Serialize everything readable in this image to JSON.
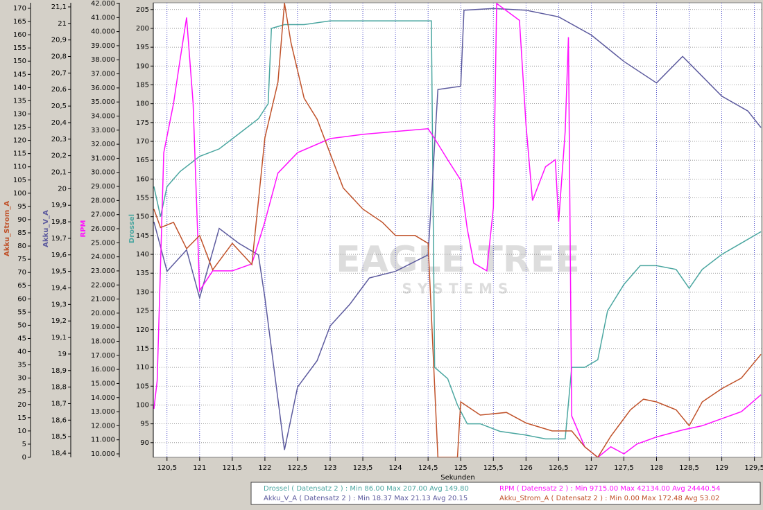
{
  "chart_data": {
    "type": "line",
    "grid": true,
    "x_label": "Sekunden",
    "watermark": [
      "EAGLE TREE",
      "SYSTEMS"
    ],
    "xlim": [
      120.29,
      129.61
    ],
    "xticks": [
      {
        "value": 120.5,
        "label": "120,5"
      },
      121,
      {
        "value": 121.5,
        "label": "121,5"
      },
      122,
      {
        "value": 122.5,
        "label": "122,5"
      },
      123,
      {
        "value": 123.5,
        "label": "123,5"
      },
      124,
      {
        "value": 124.5,
        "label": "124,5"
      },
      125,
      {
        "value": 125.5,
        "label": "125,5"
      },
      126,
      {
        "value": 126.5,
        "label": "126,5"
      },
      127,
      {
        "value": 127.5,
        "label": "127,5"
      },
      128,
      {
        "value": 128.5,
        "label": "128,5"
      },
      129,
      {
        "value": 129.5,
        "label": "129,5"
      }
    ],
    "series": [
      {
        "name": "Drossel",
        "color": "#4aa6a0",
        "stats": "( Datensatz 2 ) : Min 86.00   Max 207.00   Avg 149.80",
        "ylim": [
          86.1,
          206.8
        ],
        "yticks": [
          90,
          95,
          100,
          105,
          110,
          115,
          120,
          125,
          130,
          135,
          140,
          145,
          150,
          155,
          160,
          165,
          170,
          175,
          180,
          185,
          190,
          195,
          200,
          205
        ],
        "x": [
          120.3,
          120.4,
          120.5,
          120.7,
          121,
          121.3,
          121.6,
          121.9,
          122.05,
          122.1,
          122.3,
          122.6,
          123,
          123.5,
          124,
          124.5,
          124.55,
          124.6,
          124.8,
          124.95,
          125.1,
          125.3,
          125.6,
          126,
          126.3,
          126.6,
          126.7,
          126.9,
          127.1,
          127.25,
          127.5,
          127.75,
          128,
          128.3,
          128.5,
          128.7,
          129,
          129.3,
          129.6
        ],
        "values": [
          158,
          150,
          158,
          162,
          166,
          168,
          172,
          176,
          180,
          200,
          201,
          201,
          202,
          202,
          202,
          202,
          202,
          110,
          107,
          100,
          95,
          95,
          93,
          92,
          91,
          91,
          110,
          110,
          112,
          125,
          132,
          137,
          137,
          136,
          131,
          136,
          140,
          143,
          146
        ]
      },
      {
        "name": "Akku_V_A",
        "color": "#5c5a9e",
        "stats": "( Datensatz 2 ) : Min 18.37   Max 21.13   Avg 20.15",
        "ylim": [
          18.375,
          21.125
        ],
        "yticks": [
          {
            "value": 18.4,
            "label": "18,4"
          },
          {
            "value": 18.5,
            "label": "18,5"
          },
          {
            "value": 18.6,
            "label": "18,6"
          },
          {
            "value": 18.7,
            "label": "18,7"
          },
          {
            "value": 18.8,
            "label": "18,8"
          },
          {
            "value": 18.9,
            "label": "18,9"
          },
          19,
          {
            "value": 19.1,
            "label": "19,1"
          },
          {
            "value": 19.2,
            "label": "19,2"
          },
          {
            "value": 19.3,
            "label": "19,3"
          },
          {
            "value": 19.4,
            "label": "19,4"
          },
          {
            "value": 19.5,
            "label": "19,5"
          },
          {
            "value": 19.6,
            "label": "19,6"
          },
          {
            "value": 19.7,
            "label": "19,7"
          },
          {
            "value": 19.8,
            "label": "19,8"
          },
          {
            "value": 19.9,
            "label": "19,9"
          },
          20,
          {
            "value": 20.1,
            "label": "20,1"
          },
          {
            "value": 20.2,
            "label": "20,2"
          },
          {
            "value": 20.3,
            "label": "20,3"
          },
          {
            "value": 20.4,
            "label": "20,4"
          },
          {
            "value": 20.5,
            "label": "20,5"
          },
          {
            "value": 20.6,
            "label": "20,6"
          },
          {
            "value": 20.7,
            "label": "20,7"
          },
          {
            "value": 20.8,
            "label": "20,8"
          },
          {
            "value": 20.9,
            "label": "20,9"
          },
          21,
          {
            "value": 21.1,
            "label": "21,1"
          }
        ],
        "x": [
          120.3,
          120.5,
          120.8,
          121,
          121.3,
          121.6,
          121.9,
          122,
          122.3,
          122.5,
          122.8,
          123,
          123.3,
          123.6,
          124,
          124.5,
          124.65,
          125,
          125.05,
          125.5,
          126,
          126.5,
          127,
          127.5,
          128,
          128.4,
          128.7,
          129,
          129.4,
          129.6
        ],
        "values": [
          19.8,
          19.5,
          19.63,
          19.34,
          19.76,
          19.67,
          19.6,
          19.34,
          18.42,
          18.8,
          18.96,
          19.17,
          19.3,
          19.46,
          19.5,
          19.6,
          20.6,
          20.62,
          21.08,
          21.09,
          21.08,
          21.04,
          20.93,
          20.77,
          20.64,
          20.8,
          20.68,
          20.56,
          20.47,
          20.37
        ]
      },
      {
        "name": "RPM",
        "color": "#ff10ff",
        "stats": "( Datensatz 2 ) : Min 9715.00   Max 42134.00   Avg 24440.54",
        "ylim": [
          9754,
          42049
        ],
        "yticks": [
          {
            "value": 10000,
            "label": "10.000"
          },
          {
            "value": 11000,
            "label": "11.000"
          },
          {
            "value": 12000,
            "label": "12.000"
          },
          {
            "value": 13000,
            "label": "13.000"
          },
          {
            "value": 14000,
            "label": "14.000"
          },
          {
            "value": 15000,
            "label": "15.000"
          },
          {
            "value": 16000,
            "label": "16.000"
          },
          {
            "value": 17000,
            "label": "17.000"
          },
          {
            "value": 18000,
            "label": "18.000"
          },
          {
            "value": 19000,
            "label": "19.000"
          },
          {
            "value": 20000,
            "label": "20.000"
          },
          {
            "value": 21000,
            "label": "21.000"
          },
          {
            "value": 22000,
            "label": "22.000"
          },
          {
            "value": 23000,
            "label": "23.000"
          },
          {
            "value": 24000,
            "label": "24.000"
          },
          {
            "value": 25000,
            "label": "25.000"
          },
          {
            "value": 26000,
            "label": "26.000"
          },
          {
            "value": 27000,
            "label": "27.000"
          },
          {
            "value": 28000,
            "label": "28.000"
          },
          {
            "value": 29000,
            "label": "29.000"
          },
          {
            "value": 30000,
            "label": "30.000"
          },
          {
            "value": 31000,
            "label": "31.000"
          },
          {
            "value": 32000,
            "label": "32.000"
          },
          {
            "value": 33000,
            "label": "33.000"
          },
          {
            "value": 34000,
            "label": "34.000"
          },
          {
            "value": 35000,
            "label": "35.000"
          },
          {
            "value": 36000,
            "label": "36.000"
          },
          {
            "value": 37000,
            "label": "37.000"
          },
          {
            "value": 38000,
            "label": "38.000"
          },
          {
            "value": 39000,
            "label": "39.000"
          },
          {
            "value": 40000,
            "label": "40.000"
          },
          {
            "value": 41000,
            "label": "41.000"
          },
          {
            "value": 42000,
            "label": "42.000"
          }
        ],
        "x": [
          120.3,
          120.35,
          120.45,
          120.6,
          120.7,
          120.8,
          120.9,
          121,
          121.2,
          121.5,
          121.8,
          122,
          122.2,
          122.5,
          123,
          123.5,
          124,
          124.5,
          124.6,
          124.8,
          125,
          125.1,
          125.2,
          125.4,
          125.5,
          125.55,
          125.9,
          126,
          126.1,
          126.3,
          126.45,
          126.5,
          126.6,
          126.65,
          126.7,
          126.9,
          127.1,
          127.3,
          127.5,
          127.7,
          128,
          128.4,
          128.7,
          129,
          129.3,
          129.6
        ],
        "values": [
          13200,
          15200,
          31400,
          34900,
          38000,
          41000,
          34900,
          21600,
          23000,
          23000,
          23500,
          26500,
          29950,
          31400,
          32400,
          32700,
          32900,
          33100,
          32400,
          30900,
          29450,
          26000,
          23550,
          23000,
          27500,
          42000,
          40800,
          33400,
          28000,
          30400,
          30900,
          26500,
          32900,
          39600,
          12700,
          10500,
          9750,
          10500,
          10000,
          10700,
          11200,
          11700,
          12000,
          12500,
          13000,
          14200
        ]
      },
      {
        "name": "Akku_Strom_A",
        "color": "#c0522a",
        "stats": "( Datensatz 2 ) : Min 0.00   Max 172.48   Avg 53.02",
        "ylim": [
          0,
          172.1
        ],
        "yticks": [
          0,
          5,
          10,
          15,
          20,
          25,
          30,
          35,
          40,
          45,
          50,
          55,
          60,
          65,
          70,
          75,
          80,
          85,
          90,
          95,
          100,
          105,
          110,
          115,
          120,
          125,
          130,
          135,
          140,
          145,
          150,
          155,
          160,
          165,
          170
        ],
        "x": [
          120.3,
          120.4,
          120.6,
          120.8,
          121,
          121.2,
          121.5,
          121.8,
          122,
          122.2,
          122.3,
          122.4,
          122.6,
          122.8,
          123,
          123.2,
          123.5,
          123.8,
          124,
          124.3,
          124.5,
          124.65,
          124.95,
          125,
          125.3,
          125.7,
          126,
          126.4,
          126.7,
          126.9,
          127.1,
          127.3,
          127.6,
          127.8,
          128,
          128.3,
          128.5,
          128.7,
          129,
          129.3,
          129.6
        ],
        "values": [
          94,
          87,
          89,
          79,
          84,
          71,
          81,
          73,
          121,
          142,
          172,
          157,
          136,
          128,
          115,
          102,
          94,
          89,
          84,
          84,
          81,
          0,
          0,
          21,
          16,
          17,
          13,
          10,
          10,
          4,
          0,
          8,
          18,
          22,
          21,
          18,
          12,
          21,
          26,
          30,
          39
        ]
      }
    ]
  }
}
